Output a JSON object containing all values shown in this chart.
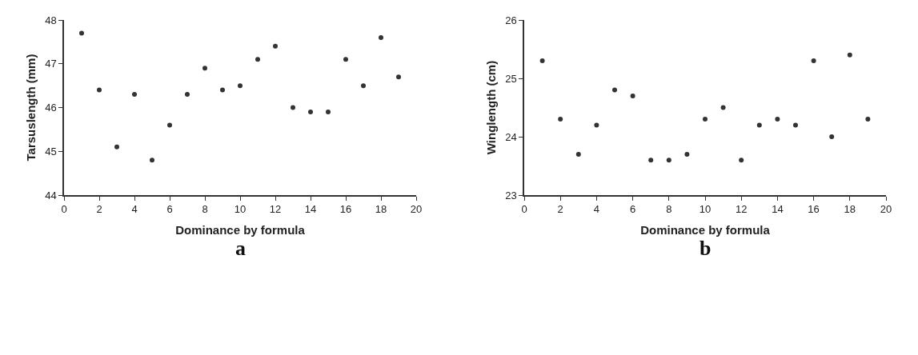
{
  "chart_data": [
    {
      "type": "scatter",
      "xlabel": "Dominance by formula",
      "ylabel": "Tarsuslength (mm)",
      "annotations": [
        "a"
      ],
      "marker": "circle",
      "grid": false,
      "x": [
        1,
        2,
        3,
        4,
        5,
        6,
        7,
        8,
        9,
        10,
        11,
        12,
        13,
        14,
        15,
        16,
        17,
        18,
        19
      ],
      "series": [
        {
          "color": "#333333",
          "values": [
            47.7,
            46.4,
            45.1,
            46.3,
            44.8,
            45.6,
            46.3,
            46.9,
            46.4,
            46.5,
            47.1,
            47.4,
            46.0,
            45.9,
            45.9,
            47.1,
            46.5,
            47.6,
            46.7
          ]
        }
      ],
      "xlim": [
        0,
        20
      ],
      "xticks": [
        0,
        2,
        4,
        6,
        8,
        10,
        12,
        14,
        16,
        18,
        20
      ],
      "ylim": [
        44,
        48
      ],
      "yticks": [
        44,
        45,
        46,
        47,
        48
      ]
    },
    {
      "type": "scatter",
      "xlabel": "Dominance by formula",
      "ylabel": "Winglength (cm)",
      "annotations": [
        "b"
      ],
      "marker": "circle",
      "grid": false,
      "x": [
        1,
        2,
        3,
        4,
        5,
        6,
        7,
        8,
        9,
        10,
        11,
        12,
        13,
        14,
        15,
        16,
        17,
        18,
        19
      ],
      "series": [
        {
          "color": "#333333",
          "values": [
            25.3,
            24.3,
            23.7,
            24.2,
            24.8,
            24.7,
            23.6,
            23.6,
            23.7,
            24.3,
            24.5,
            23.6,
            24.2,
            24.3,
            24.2,
            25.3,
            24.0,
            25.4,
            24.3
          ]
        }
      ],
      "xlim": [
        0,
        20
      ],
      "xticks": [
        0,
        2,
        4,
        6,
        8,
        10,
        12,
        14,
        16,
        18,
        20
      ],
      "ylim": [
        23,
        26
      ],
      "yticks": [
        23,
        24,
        25,
        26
      ]
    }
  ]
}
